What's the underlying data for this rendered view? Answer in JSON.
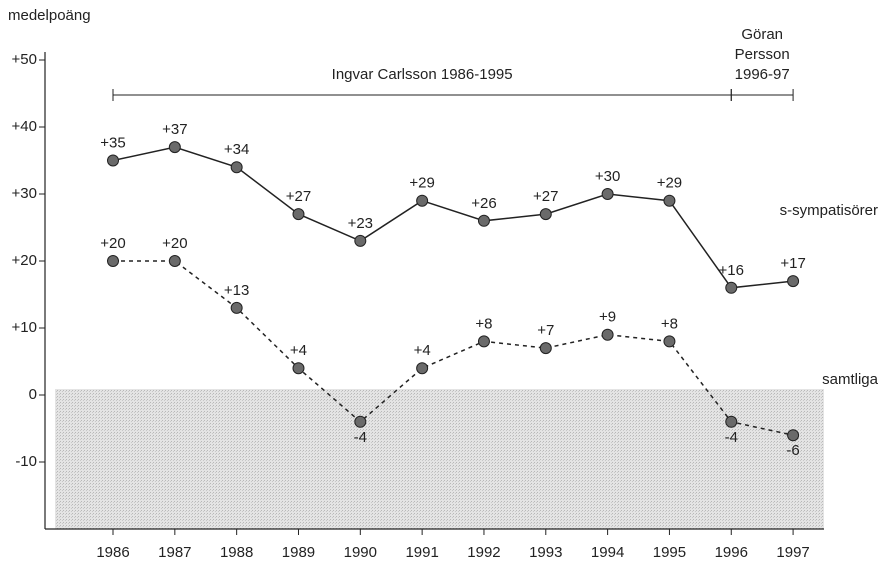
{
  "chart_data": {
    "type": "line",
    "y_label": "medelpoäng",
    "x": [
      1986,
      1987,
      1988,
      1989,
      1990,
      1991,
      1992,
      1993,
      1994,
      1995,
      1996,
      1997
    ],
    "xlim": [
      1984.9,
      1997.5
    ],
    "xticks": [
      1986,
      1987,
      1988,
      1989,
      1990,
      1991,
      1992,
      1993,
      1994,
      1995,
      1996,
      1997
    ],
    "ylim": [
      -20,
      50
    ],
    "yticks": [
      {
        "value": 50,
        "label": "+50"
      },
      {
        "value": 40,
        "label": "+40"
      },
      {
        "value": 30,
        "label": "+30"
      },
      {
        "value": 20,
        "label": "+20"
      },
      {
        "value": 10,
        "label": "+10"
      },
      0,
      -10
    ],
    "series": [
      {
        "name": "s-sympatisörer",
        "color": "#222222",
        "dashed": false,
        "values": [
          35,
          37,
          34,
          27,
          23,
          29,
          26,
          27,
          30,
          29,
          16,
          17
        ],
        "value_labels": [
          "+35",
          "+37",
          "+34",
          "+27",
          "+23",
          "+29",
          "+26",
          "+27",
          "+30",
          "+29",
          "+16",
          "+17"
        ]
      },
      {
        "name": "samtliga",
        "color": "#222222",
        "dashed": true,
        "values": [
          20,
          20,
          13,
          4,
          -4,
          4,
          8,
          7,
          9,
          8,
          -4,
          -6
        ],
        "value_labels": [
          "+20",
          "+20",
          "+13",
          "+4",
          "-4",
          "+4",
          "+8",
          "+7",
          "+9",
          "+8",
          "-4",
          "-6"
        ]
      }
    ],
    "annotations": [
      {
        "lines": [
          "Ingvar Carlsson 1986-1995"
        ],
        "span": [
          1986,
          1996
        ]
      },
      {
        "lines": [
          "Göran",
          "Persson",
          "1996-97"
        ],
        "span": [
          1996,
          1997
        ]
      }
    ]
  }
}
